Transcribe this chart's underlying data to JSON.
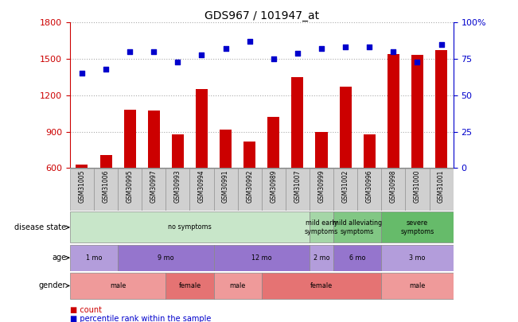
{
  "title": "GDS967 / 101947_at",
  "samples": [
    "GSM31005",
    "GSM31006",
    "GSM30995",
    "GSM30997",
    "GSM30993",
    "GSM30994",
    "GSM30991",
    "GSM30992",
    "GSM30989",
    "GSM31007",
    "GSM30999",
    "GSM31002",
    "GSM30996",
    "GSM30998",
    "GSM31000",
    "GSM31001"
  ],
  "counts": [
    630,
    710,
    1080,
    1075,
    875,
    1250,
    920,
    820,
    1025,
    1350,
    900,
    1270,
    880,
    1540,
    1535,
    1570
  ],
  "percentiles": [
    65,
    68,
    80,
    80,
    73,
    78,
    82,
    87,
    75,
    79,
    82,
    83,
    83,
    80,
    73,
    85
  ],
  "ylim_left": [
    600,
    1800
  ],
  "ylim_right": [
    0,
    100
  ],
  "yticks_left": [
    600,
    900,
    1200,
    1500,
    1800
  ],
  "yticks_right": [
    0,
    25,
    50,
    75,
    100
  ],
  "disease_segments": [
    {
      "label": "no symptoms",
      "start": 0,
      "end": 10,
      "color": "#c8e6c9"
    },
    {
      "label": "mild early\nsymptoms",
      "start": 10,
      "end": 11,
      "color": "#a5d6a7"
    },
    {
      "label": "mild alleviating\nsymptoms",
      "start": 11,
      "end": 13,
      "color": "#81c784"
    },
    {
      "label": "severe\nsymptoms",
      "start": 13,
      "end": 16,
      "color": "#66bb6a"
    }
  ],
  "age_segments": [
    {
      "label": "1 mo",
      "start": 0,
      "end": 2,
      "color": "#b39ddb"
    },
    {
      "label": "9 mo",
      "start": 2,
      "end": 6,
      "color": "#9575cd"
    },
    {
      "label": "12 mo",
      "start": 6,
      "end": 10,
      "color": "#9575cd"
    },
    {
      "label": "2 mo",
      "start": 10,
      "end": 11,
      "color": "#b39ddb"
    },
    {
      "label": "6 mo",
      "start": 11,
      "end": 13,
      "color": "#9575cd"
    },
    {
      "label": "3 mo",
      "start": 13,
      "end": 16,
      "color": "#b39ddb"
    }
  ],
  "gender_segments": [
    {
      "label": "male",
      "start": 0,
      "end": 4,
      "color": "#ef9a9a"
    },
    {
      "label": "female",
      "start": 4,
      "end": 6,
      "color": "#e57373"
    },
    {
      "label": "male",
      "start": 6,
      "end": 8,
      "color": "#ef9a9a"
    },
    {
      "label": "female",
      "start": 8,
      "end": 13,
      "color": "#e57373"
    },
    {
      "label": "male",
      "start": 13,
      "end": 16,
      "color": "#ef9a9a"
    }
  ],
  "bar_color": "#cc0000",
  "dot_color": "#0000cc",
  "grid_color": "#aaaaaa",
  "axis_left_color": "#cc0000",
  "axis_right_color": "#0000cc",
  "background_color": "#ffffff",
  "tick_label_bg": "#d0d0d0"
}
